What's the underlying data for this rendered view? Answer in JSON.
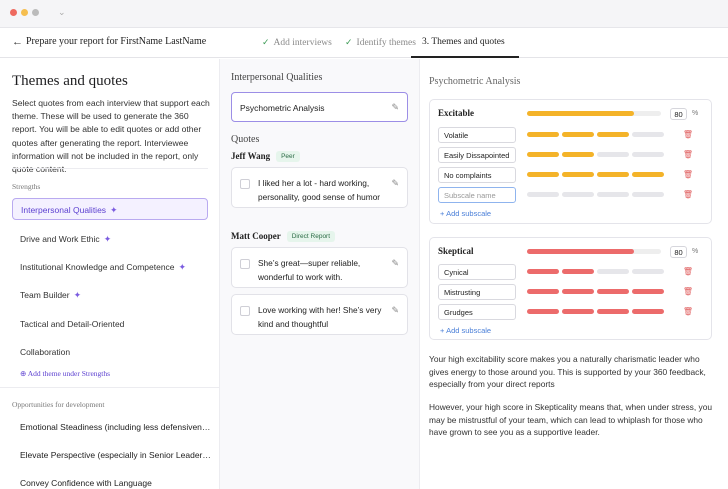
{
  "colors": {
    "excitable": "#f4b329",
    "skeptical": "#ec6b6b",
    "accent": "#6a4fd8",
    "empty": "#e6e6ea"
  },
  "topbar": {
    "back_icon": "arrow-left-icon",
    "title": "Prepare your report for FirstName LastName",
    "steps": [
      {
        "label": "Add interviews",
        "done": true
      },
      {
        "label": "Identify themes",
        "done": true
      },
      {
        "label": "3.  Themes and quotes",
        "done": false
      }
    ]
  },
  "left": {
    "heading": "Themes and quotes",
    "description": "Select quotes from each interview that support each theme. These will be used to generate the 360 report. You will be able to edit quotes or add other quotes after generating the report. Interviewee information will not be included in the report, only quote content.",
    "strengths_label": "Strengths",
    "strengths": [
      {
        "label": "Interpersonal Qualities",
        "ai": true
      },
      {
        "label": "Drive and Work Ethic",
        "ai": true
      },
      {
        "label": "Institutional Knowledge and Competence",
        "ai": true
      },
      {
        "label": "Team Builder",
        "ai": true
      },
      {
        "label": "Tactical and Detail-Oriented",
        "ai": false
      },
      {
        "label": "Collaboration",
        "ai": false
      }
    ],
    "add_theme": "Add theme under Strengths",
    "opportunities_label": "Opportunities for development",
    "opportunities": [
      "Emotional Steadiness (including less defensiven…",
      "Elevate Perspective (especially in Senior Leader…",
      "Convey Confidence with Language"
    ]
  },
  "middle": {
    "heading": "Interpersonal Qualities",
    "selected_value": "Psychometric Analysis",
    "quotes_label": "Quotes",
    "people": [
      {
        "name": "Jeff Wang",
        "role": "Peer",
        "quotes": [
          "I liked her a lot - hard working, personality, good sense of humor"
        ]
      },
      {
        "name": "Matt Cooper",
        "role": "Direct Report",
        "quotes": [
          "She’s great—super reliable, wonderful to work with.",
          "Love working with her! She’s very kind and thoughtful"
        ]
      }
    ]
  },
  "right": {
    "heading": "Psychometric Analysis",
    "scales": [
      {
        "name": "Excitable",
        "score": "80",
        "score_fraction": 0.8,
        "unit": "%",
        "subscales": [
          {
            "name": "Volatile",
            "level": 3
          },
          {
            "name": "Easily Dissapointed",
            "level": 2
          },
          {
            "name": "No complaints",
            "level": 4
          }
        ],
        "new_subscale_placeholder": "Subscale name",
        "add_subscale": "Add subscale"
      },
      {
        "name": "Skeptical",
        "score": "80",
        "score_fraction": 0.8,
        "unit": "%",
        "subscales": [
          {
            "name": "Cynical",
            "level": 2
          },
          {
            "name": "Mistrusting",
            "level": 4
          },
          {
            "name": "Grudges",
            "level": 4
          }
        ],
        "add_subscale": "Add subscale"
      }
    ],
    "paragraphs": [
      "Your high excitability score makes you a naturally charismatic leader who gives energy to those around you. This is supported by your 360 feedback, especially from your direct reports",
      "However, your high score in Skepticality means that, when under stress, you may be mistrustful of your team, which can lead to whiplash for those who have grown to see you as a supportive leader."
    ]
  }
}
